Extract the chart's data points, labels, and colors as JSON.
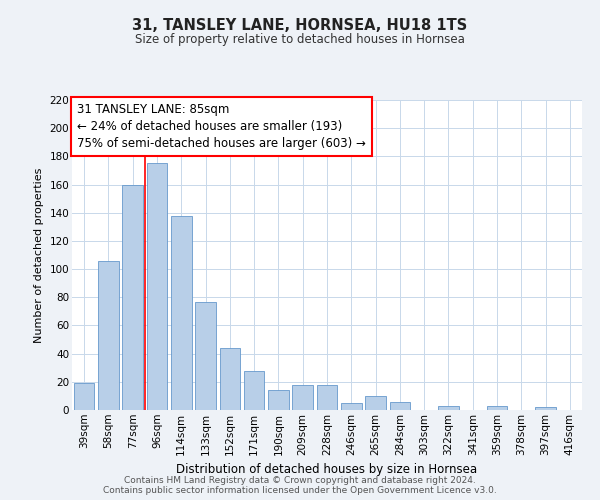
{
  "title": "31, TANSLEY LANE, HORNSEA, HU18 1TS",
  "subtitle": "Size of property relative to detached houses in Hornsea",
  "xlabel": "Distribution of detached houses by size in Hornsea",
  "ylabel": "Number of detached properties",
  "categories": [
    "39sqm",
    "58sqm",
    "77sqm",
    "96sqm",
    "114sqm",
    "133sqm",
    "152sqm",
    "171sqm",
    "190sqm",
    "209sqm",
    "228sqm",
    "246sqm",
    "265sqm",
    "284sqm",
    "303sqm",
    "322sqm",
    "341sqm",
    "359sqm",
    "378sqm",
    "397sqm",
    "416sqm"
  ],
  "values": [
    19,
    106,
    160,
    175,
    138,
    77,
    44,
    28,
    14,
    18,
    18,
    5,
    10,
    6,
    0,
    3,
    0,
    3,
    0,
    2,
    0
  ],
  "bar_color": "#b8cfe8",
  "bar_edge_color": "#6699cc",
  "red_line_x": 2.5,
  "annotation_title": "31 TANSLEY LANE: 85sqm",
  "annotation_line1": "← 24% of detached houses are smaller (193)",
  "annotation_line2": "75% of semi-detached houses are larger (603) →",
  "ylim": [
    0,
    220
  ],
  "yticks": [
    0,
    20,
    40,
    60,
    80,
    100,
    120,
    140,
    160,
    180,
    200,
    220
  ],
  "footer1": "Contains HM Land Registry data © Crown copyright and database right 2024.",
  "footer2": "Contains public sector information licensed under the Open Government Licence v3.0.",
  "background_color": "#eef2f7",
  "plot_background": "#ffffff",
  "grid_color": "#c8d8ea",
  "title_fontsize": 10.5,
  "subtitle_fontsize": 8.5,
  "xlabel_fontsize": 8.5,
  "ylabel_fontsize": 8,
  "tick_fontsize": 7.5,
  "annotation_fontsize": 8.5,
  "footer_fontsize": 6.5
}
